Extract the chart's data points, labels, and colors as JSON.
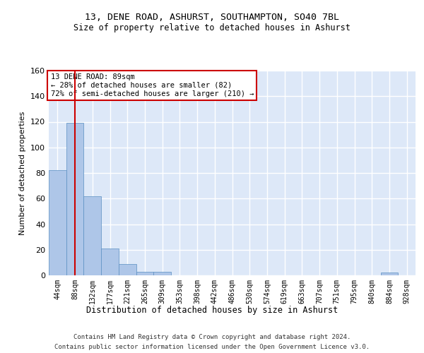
{
  "title1": "13, DENE ROAD, ASHURST, SOUTHAMPTON, SO40 7BL",
  "title2": "Size of property relative to detached houses in Ashurst",
  "xlabel": "Distribution of detached houses by size in Ashurst",
  "ylabel": "Number of detached properties",
  "categories": [
    "44sqm",
    "88sqm",
    "132sqm",
    "177sqm",
    "221sqm",
    "265sqm",
    "309sqm",
    "353sqm",
    "398sqm",
    "442sqm",
    "486sqm",
    "530sqm",
    "574sqm",
    "619sqm",
    "663sqm",
    "707sqm",
    "751sqm",
    "795sqm",
    "840sqm",
    "884sqm",
    "928sqm"
  ],
  "values": [
    82,
    119,
    62,
    21,
    9,
    3,
    3,
    0,
    0,
    0,
    0,
    0,
    0,
    0,
    0,
    0,
    0,
    0,
    0,
    2,
    0
  ],
  "bar_color": "#aec6e8",
  "bar_edge_color": "#5a8fc2",
  "background_color": "#dde8f8",
  "grid_color": "#ffffff",
  "vline_x": 1,
  "vline_color": "#cc0000",
  "annotation_line1": "13 DENE ROAD: 89sqm",
  "annotation_line2": "← 28% of detached houses are smaller (82)",
  "annotation_line3": "72% of semi-detached houses are larger (210) →",
  "annotation_box_color": "#ffffff",
  "annotation_box_edge": "#cc0000",
  "ylim": [
    0,
    160
  ],
  "yticks": [
    0,
    20,
    40,
    60,
    80,
    100,
    120,
    140,
    160
  ],
  "footer_line1": "Contains HM Land Registry data © Crown copyright and database right 2024.",
  "footer_line2": "Contains public sector information licensed under the Open Government Licence v3.0."
}
